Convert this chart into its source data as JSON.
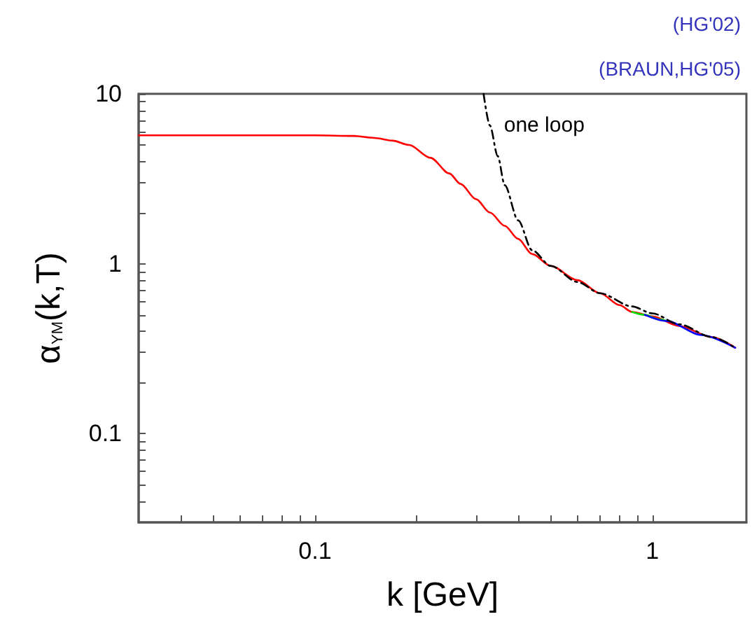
{
  "chart_data": {
    "type": "line",
    "xlabel": "k [GeV]",
    "ylabel": "α$_{YM}$(k,T)",
    "log": "xy",
    "grid": false,
    "legend": false,
    "marker": "none",
    "annotations": [
      "(HG'02)",
      "(BRAUN,HG'05)"
    ],
    "xlim": [
      0.03,
      1.9
    ],
    "ylim": [
      0.03,
      10
    ],
    "xticks": [
      {
        "value": 0.04,
        "label": null
      },
      {
        "value": 0.05,
        "label": null
      },
      {
        "value": 0.06,
        "label": null
      },
      {
        "value": 0.07,
        "label": null
      },
      {
        "value": 0.08,
        "label": null
      },
      {
        "value": 0.09,
        "label": null
      },
      0.1,
      {
        "value": 0.2,
        "label": null
      },
      {
        "value": 0.3,
        "label": null
      },
      {
        "value": 0.4,
        "label": null
      },
      {
        "value": 0.5,
        "label": null
      },
      {
        "value": 0.6,
        "label": null
      },
      {
        "value": 0.7,
        "label": null
      },
      {
        "value": 0.8,
        "label": null
      },
      {
        "value": 0.9,
        "label": null
      },
      1
    ],
    "yticks": [
      {
        "value": 0.04,
        "label": null
      },
      {
        "value": 0.05,
        "label": null
      },
      {
        "value": 0.06,
        "label": null
      },
      {
        "value": 0.07,
        "label": null
      },
      {
        "value": 0.08,
        "label": null
      },
      {
        "value": 0.09,
        "label": null
      },
      0.1,
      {
        "value": 0.2,
        "label": null
      },
      {
        "value": 0.3,
        "label": null
      },
      {
        "value": 0.4,
        "label": null
      },
      {
        "value": 0.5,
        "label": null
      },
      {
        "value": 0.6,
        "label": null
      },
      {
        "value": 0.7,
        "label": null
      },
      {
        "value": 0.8,
        "label": null
      },
      {
        "value": 0.9,
        "label": null
      },
      1,
      {
        "value": 2,
        "label": null
      },
      {
        "value": 3,
        "label": null
      },
      {
        "value": 4,
        "label": null
      },
      {
        "value": 5,
        "label": null
      },
      {
        "value": 6,
        "label": null
      },
      {
        "value": 7,
        "label": null
      },
      {
        "value": 8,
        "label": null
      },
      {
        "value": 9,
        "label": null
      },
      10
    ],
    "series": [
      {
        "color": "#ff0000",
        "line_style": "solid",
        "x": [
          0.03,
          0.1,
          0.13,
          0.15,
          0.17,
          0.19,
          0.22,
          0.25,
          0.27,
          0.3,
          0.33,
          0.365,
          0.4,
          0.44,
          0.5,
          0.6,
          0.7,
          0.8,
          0.87,
          1.0,
          1.2,
          1.5,
          1.76
        ],
        "values": [
          5.7,
          5.7,
          5.65,
          5.5,
          5.3,
          5.0,
          4.2,
          3.4,
          2.95,
          2.4,
          2.0,
          1.67,
          1.4,
          1.14,
          0.97,
          0.8,
          0.67,
          0.57,
          0.52,
          0.49,
          0.43,
          0.37,
          0.32
        ]
      },
      {
        "color": "#00dd00",
        "line_style": "solid",
        "x": [
          0.87,
          0.95,
          1.05,
          1.1
        ],
        "values": [
          0.52,
          0.5,
          0.47,
          0.46
        ]
      },
      {
        "color": "#0000ff",
        "line_style": "solid",
        "x": [
          0.95,
          1.1,
          1.4,
          1.76
        ],
        "values": [
          0.5,
          0.46,
          0.38,
          0.32
        ]
      },
      {
        "name": "one loop",
        "color": "#000000",
        "line_style": "dashdot",
        "x": [
          0.316,
          0.33,
          0.348,
          0.365,
          0.4,
          0.44,
          0.5,
          0.6,
          0.7,
          0.87,
          1.0,
          1.2,
          1.5,
          1.76
        ],
        "values": [
          10,
          6.5,
          4.3,
          2.9,
          1.8,
          1.2,
          0.97,
          0.78,
          0.67,
          0.56,
          0.51,
          0.44,
          0.37,
          0.32
        ]
      }
    ]
  }
}
